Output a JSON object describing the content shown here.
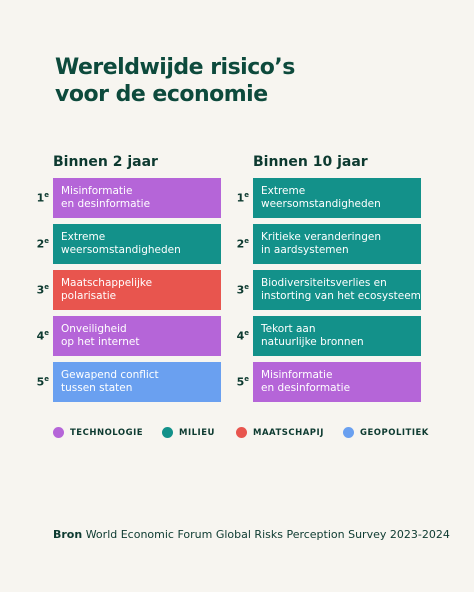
{
  "title_lines": [
    "Wereldwijde risico’s",
    "voor de economie"
  ],
  "columns": [
    {
      "heading": "Binnen 2 jaar",
      "items": [
        {
          "number": "1",
          "suffix": "e",
          "label_lines": [
            "Misinformatie",
            "en desinformatie"
          ],
          "color": "#b565d8"
        },
        {
          "number": "2",
          "suffix": "e",
          "label_lines": [
            "Extreme",
            "weersomstandigheden"
          ],
          "color": "#13918a"
        },
        {
          "number": "3",
          "suffix": "e",
          "label_lines": [
            "Maatschappelijke",
            "polarisatie"
          ],
          "color": "#e8554e"
        },
        {
          "number": "4",
          "suffix": "e",
          "label_lines": [
            "Onveiligheid",
            "op het internet"
          ],
          "color": "#b565d8"
        },
        {
          "number": "5",
          "suffix": "e",
          "label_lines": [
            "Gewapend conflict",
            "tussen staten"
          ],
          "color": "#6aa0f0"
        }
      ]
    },
    {
      "heading": "Binnen 10 jaar",
      "items": [
        {
          "number": "1",
          "suffix": "e",
          "label_lines": [
            "Extreme",
            "weersomstandigheden"
          ],
          "color": "#13918a"
        },
        {
          "number": "2",
          "suffix": "e",
          "label_lines": [
            "Kritieke veranderingen",
            "in aardsystemen"
          ],
          "color": "#13918a"
        },
        {
          "number": "3",
          "suffix": "e",
          "label_lines": [
            "Biodiversiteitsverlies en",
            "instorting van het ecosysteem"
          ],
          "color": "#13918a"
        },
        {
          "number": "4",
          "suffix": "e",
          "label_lines": [
            "Tekort aan",
            "natuurlijke bronnen"
          ],
          "color": "#13918a"
        },
        {
          "number": "5",
          "suffix": "e",
          "label_lines": [
            "Misinformatie",
            "en desinformatie"
          ],
          "color": "#b565d8"
        }
      ]
    }
  ],
  "legend": [
    {
      "label": "TECHNOLOGIE",
      "color": "#b565d8"
    },
    {
      "label": "MILIEU",
      "color": "#13918a"
    },
    {
      "label": "MAATSCHAPIJ",
      "color": "#e8554e"
    },
    {
      "label": "GEOPOLITIEK",
      "color": "#6aa0f0"
    }
  ],
  "source": {
    "label": "Bron",
    "text": "World Economic Forum Global Risks Perception Survey 2023-2024"
  }
}
